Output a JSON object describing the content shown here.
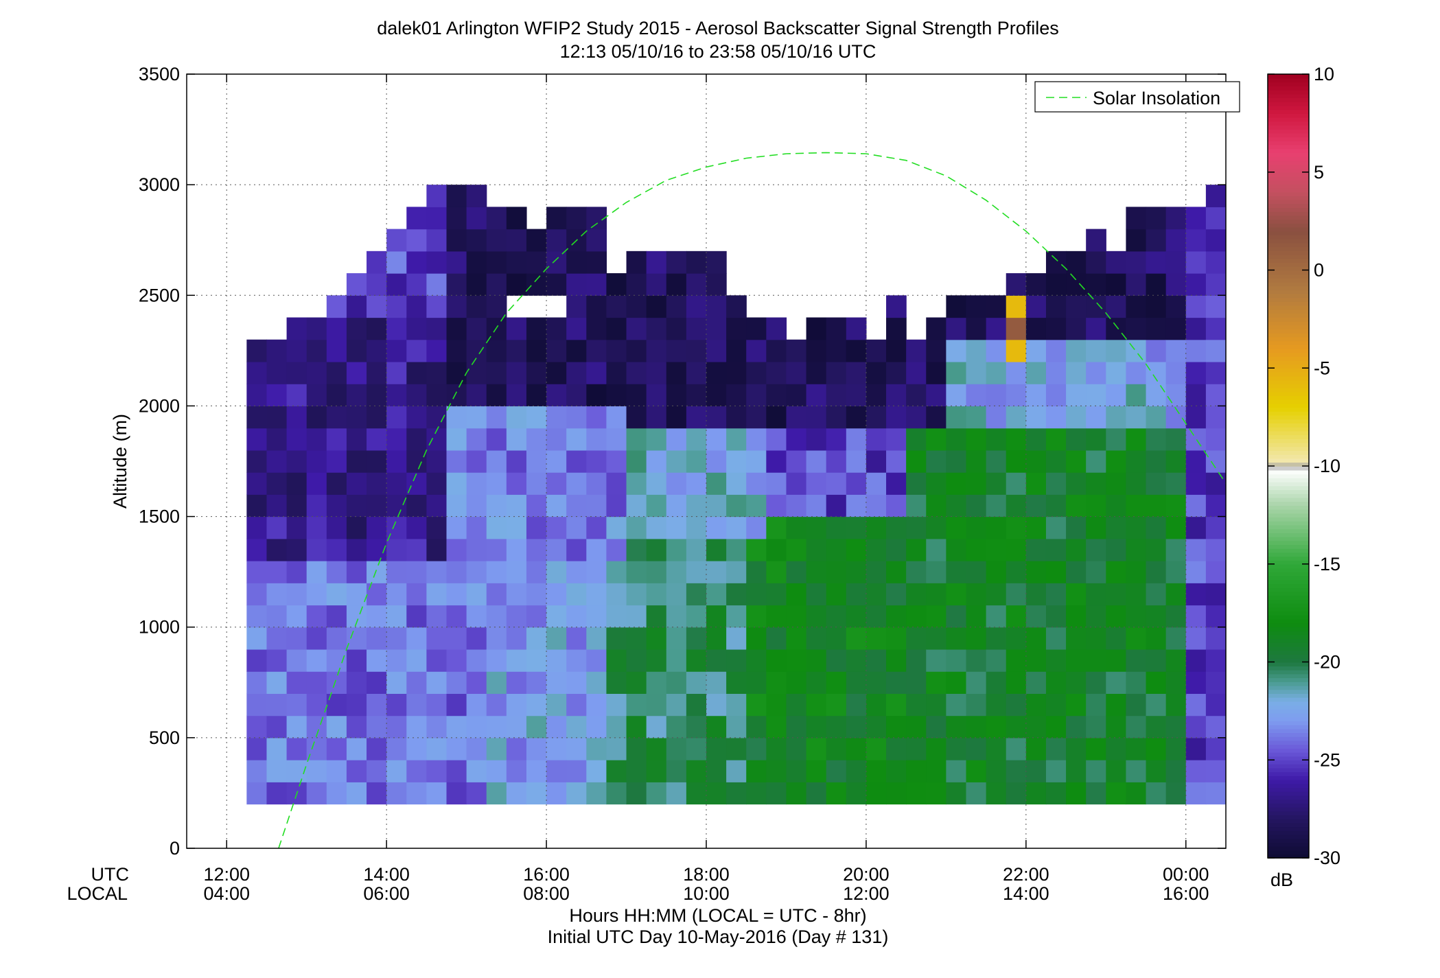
{
  "chart_data": {
    "type": "heatmap",
    "title": "dalek01 Arlington WFIP2 Study 2015 - Aerosol Backscatter Signal Strength Profiles",
    "subtitle": "12:13 05/10/16 to 23:58 05/10/16  UTC",
    "xlabel": "Hours HH:MM  (LOCAL = UTC - 8hr)",
    "xlabel2": "Initial UTC Day 10-May-2016 (Day # 131)",
    "ylabel": "Altitude (m)",
    "xaxis_row_labels": {
      "utc": "UTC",
      "local": "LOCAL"
    },
    "xlim": [
      11.5,
      24.5
    ],
    "ylim": [
      0,
      3500
    ],
    "grid": true,
    "x_ticks": [
      {
        "x": 12,
        "utc": "12:00",
        "local": "04:00"
      },
      {
        "x": 14,
        "utc": "14:00",
        "local": "06:00"
      },
      {
        "x": 16,
        "utc": "16:00",
        "local": "08:00"
      },
      {
        "x": 18,
        "utc": "18:00",
        "local": "10:00"
      },
      {
        "x": 20,
        "utc": "20:00",
        "local": "12:00"
      },
      {
        "x": 22,
        "utc": "22:00",
        "local": "14:00"
      },
      {
        "x": 24,
        "utc": "00:00",
        "local": "16:00"
      }
    ],
    "y_ticks": [
      {
        "y": 0,
        "label": "0"
      },
      {
        "y": 500,
        "label": "500"
      },
      {
        "y": 1000,
        "label": "1000"
      },
      {
        "y": 1500,
        "label": "1500"
      },
      {
        "y": 2000,
        "label": "2000"
      },
      {
        "y": 2500,
        "label": "2500"
      },
      {
        "y": 3000,
        "label": "3000"
      },
      {
        "y": 3500,
        "label": "3500"
      }
    ],
    "heatmap": {
      "x_start": 12.25,
      "x_step": 0.25,
      "y_start": 200,
      "y_step": 100,
      "value_units": "dB",
      "profile_top_m": [
        2300,
        2300,
        2400,
        2400,
        2500,
        2600,
        2700,
        2800,
        2900,
        3000,
        3000,
        3000,
        2900,
        2900,
        2800,
        2900,
        2900,
        2900,
        2600,
        2700,
        2700,
        2700,
        2700,
        2700,
        2500,
        2400,
        2400,
        2300,
        2400,
        2400,
        2400,
        2300,
        2500,
        2300,
        2400,
        2500,
        2500,
        2500,
        2600,
        2600,
        2700,
        2700,
        2800,
        2700,
        2900,
        2900,
        2900,
        2900,
        3000
      ],
      "gaps": [
        {
          "x0": 15.5,
          "x1": 16.25,
          "y0": 2400,
          "y1": 2500
        }
      ],
      "special_cells": [
        {
          "x": 21.75,
          "y": 2400,
          "value": -5.8
        },
        {
          "x": 21.75,
          "y": 2300,
          "value": 1.2
        },
        {
          "x": 21.75,
          "y": 2200,
          "value": -5.8
        }
      ],
      "regions_db": [
        {
          "x0": 12.25,
          "x1": 15.25,
          "y0": 200,
          "y1": 1300,
          "value": -23.8
        },
        {
          "x0": 12.25,
          "x1": 14.75,
          "y0": 1300,
          "y1": 2400,
          "value": -26.8
        },
        {
          "x0": 14.75,
          "x1": 17.0,
          "y0": 1300,
          "y1": 2000,
          "value": -23.5
        },
        {
          "x0": 15.25,
          "x1": 16.75,
          "y0": 200,
          "y1": 1300,
          "value": -22.6
        },
        {
          "x0": 16.75,
          "x1": 18.5,
          "y0": 200,
          "y1": 1400,
          "value": -20.2
        },
        {
          "x0": 17.0,
          "x1": 18.75,
          "y0": 1400,
          "y1": 1900,
          "value": -22.1
        },
        {
          "x0": 18.5,
          "x1": 20.5,
          "y0": 200,
          "y1": 1500,
          "value": -18.6
        },
        {
          "x0": 20.5,
          "x1": 24.0,
          "y0": 200,
          "y1": 1900,
          "value": -19.1
        },
        {
          "x0": 21.0,
          "x1": 24.0,
          "y0": 1900,
          "y1": 2300,
          "value": -22.4
        },
        {
          "x0": 14.75,
          "x1": 24.0,
          "y0": 1900,
          "y1": 3000,
          "value": -28.2
        }
      ]
    },
    "solar_insolation": {
      "name": "Solar Insolation",
      "color": "#22dd22",
      "style": "dashed",
      "points": [
        [
          12.65,
          0
        ],
        [
          13.0,
          380
        ],
        [
          13.5,
          900
        ],
        [
          14.0,
          1380
        ],
        [
          14.5,
          1800
        ],
        [
          15.0,
          2150
        ],
        [
          15.5,
          2420
        ],
        [
          16.0,
          2620
        ],
        [
          16.5,
          2790
        ],
        [
          17.0,
          2920
        ],
        [
          17.5,
          3020
        ],
        [
          18.0,
          3080
        ],
        [
          18.5,
          3120
        ],
        [
          19.0,
          3140
        ],
        [
          19.5,
          3145
        ],
        [
          20.0,
          3140
        ],
        [
          20.5,
          3110
        ],
        [
          21.0,
          3040
        ],
        [
          21.5,
          2930
        ],
        [
          22.0,
          2790
        ],
        [
          22.5,
          2620
        ],
        [
          23.0,
          2420
        ],
        [
          23.5,
          2190
        ],
        [
          24.0,
          1920
        ],
        [
          24.5,
          1650
        ]
      ]
    },
    "legend": {
      "position": "top-right",
      "entries": [
        "Solar Insolation"
      ]
    },
    "colorbar": {
      "label": "dB",
      "range": [
        -30,
        10
      ],
      "ticks": [
        {
          "value": 10,
          "label": "10"
        },
        {
          "value": 5,
          "label": "5"
        },
        {
          "value": 0,
          "label": "0"
        },
        {
          "value": -5,
          "label": "-5"
        },
        {
          "value": -10,
          "label": "-10"
        },
        {
          "value": -15,
          "label": "-15"
        },
        {
          "value": -20,
          "label": "-20"
        },
        {
          "value": -25,
          "label": "-25"
        },
        {
          "value": -30,
          "label": "-30"
        }
      ],
      "stops": [
        {
          "value": -30,
          "color": "#0e0b33"
        },
        {
          "value": -28,
          "color": "#241660"
        },
        {
          "value": -26,
          "color": "#3e1aa8"
        },
        {
          "value": -24.5,
          "color": "#6a58d8"
        },
        {
          "value": -23,
          "color": "#7e9cf0"
        },
        {
          "value": -22,
          "color": "#7aaee6"
        },
        {
          "value": -21,
          "color": "#4a9c90"
        },
        {
          "value": -20,
          "color": "#1e7840"
        },
        {
          "value": -18,
          "color": "#0e8c10"
        },
        {
          "value": -15,
          "color": "#2fa838"
        },
        {
          "value": -12,
          "color": "#a9d4a9"
        },
        {
          "value": -10.2,
          "color": "#ffffff"
        },
        {
          "value": -10,
          "color": "#9a9a9a"
        },
        {
          "value": -9.8,
          "color": "#f2e8b0"
        },
        {
          "value": -7,
          "color": "#e6d000"
        },
        {
          "value": -4,
          "color": "#e69a20"
        },
        {
          "value": -1,
          "color": "#b07a40"
        },
        {
          "value": 2,
          "color": "#8a5040"
        },
        {
          "value": 4,
          "color": "#c45060"
        },
        {
          "value": 6,
          "color": "#e84070"
        },
        {
          "value": 8,
          "color": "#d01840"
        },
        {
          "value": 10,
          "color": "#a00020"
        }
      ]
    }
  }
}
